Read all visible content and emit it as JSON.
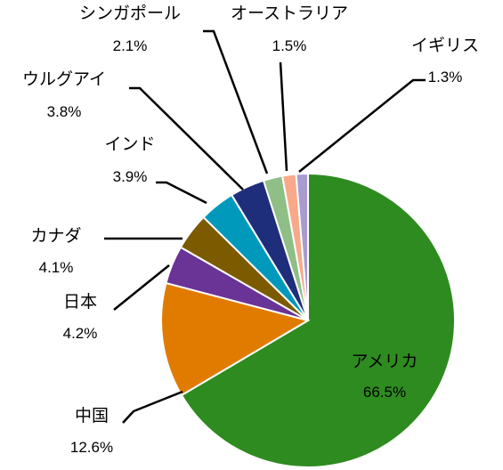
{
  "chart_data": {
    "type": "pie",
    "title": "",
    "start_angle_deg": 0,
    "direction": "clockwise",
    "labels_outside": true,
    "slices": [
      {
        "label": "アメリカ",
        "value": 66.5,
        "value_text": "66.5%",
        "color": "#2e8b1f"
      },
      {
        "label": "中国",
        "value": 12.6,
        "value_text": "12.6%",
        "color": "#e07b00"
      },
      {
        "label": "日本",
        "value": 4.2,
        "value_text": "4.2%",
        "color": "#6a3396"
      },
      {
        "label": "カナダ",
        "value": 4.1,
        "value_text": "4.1%",
        "color": "#7b5a00"
      },
      {
        "label": "インド",
        "value": 3.9,
        "value_text": "3.9%",
        "color": "#0099bb"
      },
      {
        "label": "ウルグアイ",
        "value": 3.8,
        "value_text": "3.8%",
        "color": "#1f2e7a"
      },
      {
        "label": "シンガポール",
        "value": 2.1,
        "value_text": "2.1%",
        "color": "#8fbf86"
      },
      {
        "label": "オーストラリア",
        "value": 1.5,
        "value_text": "1.5%",
        "color": "#f7a98a"
      },
      {
        "label": "イギリス",
        "value": 1.3,
        "value_text": "1.3%",
        "color": "#a99bd2"
      }
    ]
  }
}
